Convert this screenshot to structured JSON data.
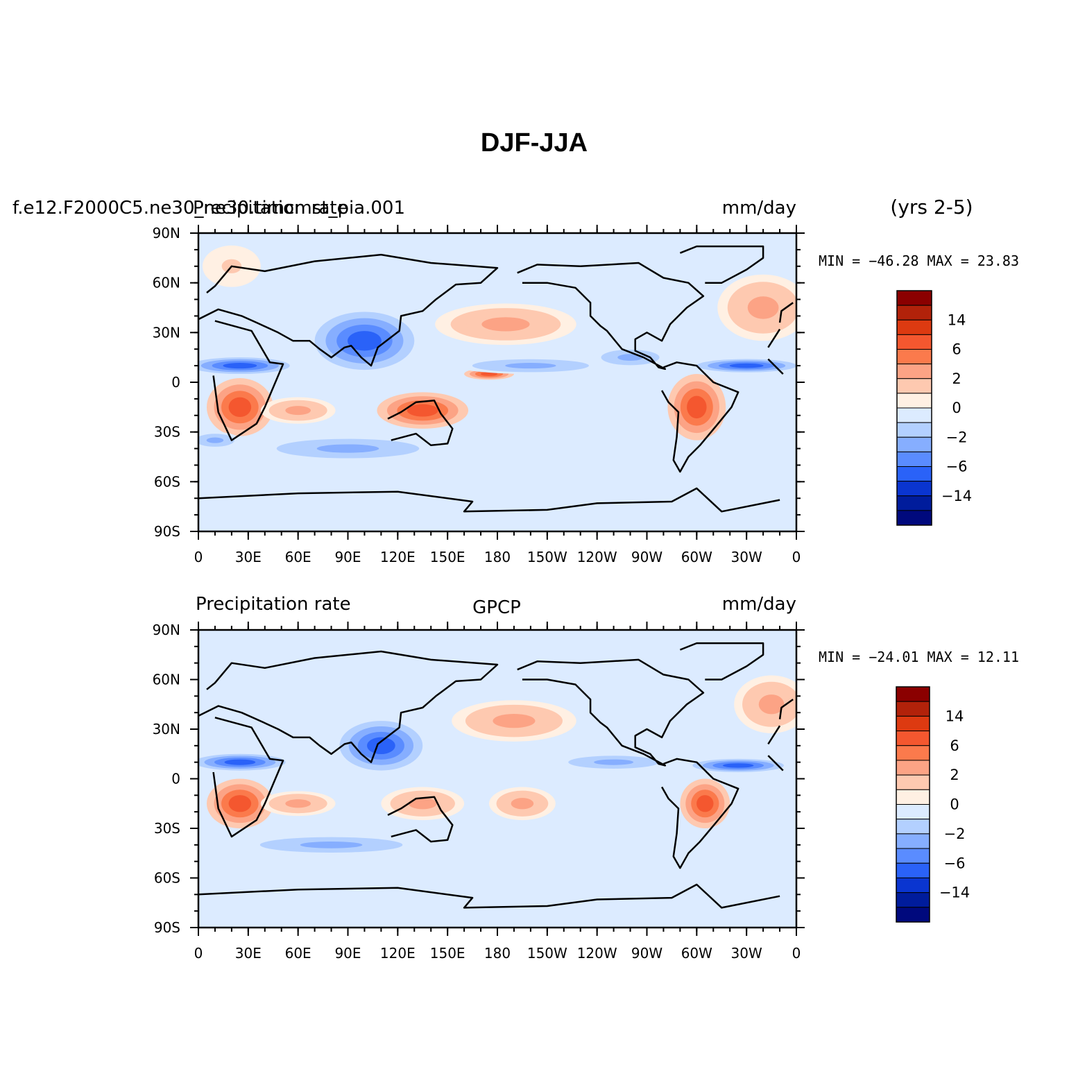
{
  "figure": {
    "title": "DJF-JJA"
  },
  "chart_data": [
    {
      "type": "contour-map",
      "case_label": "f.e12.F2000C5.ne30_ne30.timcmst_pia.001",
      "variable_label": "Precipitation rate",
      "units": "mm/day",
      "period": "(yrs 2-5)",
      "stats": {
        "label": "MIN = −46.28  MAX =   23.83",
        "min": -46.28,
        "max": 23.83
      },
      "xlim": [
        0,
        360
      ],
      "ylim": [
        -90,
        90
      ],
      "xticks": [
        "0",
        "30E",
        "60E",
        "90E",
        "120E",
        "150E",
        "180",
        "150W",
        "120W",
        "90W",
        "60W",
        "30W",
        "0"
      ],
      "yticks": [
        "90N",
        "60N",
        "30N",
        "0",
        "30S",
        "60S",
        "90S"
      ],
      "field": {
        "background": 0,
        "anomalies": [
          {
            "lon": 25,
            "lat": -15,
            "w": 40,
            "h": 35,
            "v": 6
          },
          {
            "lon": 60,
            "lat": -17,
            "w": 45,
            "h": 16,
            "v": 2
          },
          {
            "lon": 135,
            "lat": -17,
            "w": 55,
            "h": 22,
            "v": 6
          },
          {
            "lon": 300,
            "lat": -15,
            "w": 35,
            "h": 40,
            "v": 6
          },
          {
            "lon": 185,
            "lat": 35,
            "w": 85,
            "h": 25,
            "v": 2
          },
          {
            "lon": 340,
            "lat": 45,
            "w": 55,
            "h": 40,
            "v": 2
          },
          {
            "lon": 20,
            "lat": 70,
            "w": 35,
            "h": 25,
            "v": 1
          },
          {
            "lon": 175,
            "lat": 5,
            "w": 30,
            "h": 7,
            "v": 6
          },
          {
            "lon": 100,
            "lat": 25,
            "w": 60,
            "h": 35,
            "v": -6
          },
          {
            "lon": 25,
            "lat": 10,
            "w": 60,
            "h": 10,
            "v": -6
          },
          {
            "lon": 330,
            "lat": 10,
            "w": 60,
            "h": 8,
            "v": -6
          },
          {
            "lon": 260,
            "lat": 15,
            "w": 45,
            "h": 12,
            "v": -2
          },
          {
            "lon": 90,
            "lat": -40,
            "w": 110,
            "h": 15,
            "v": -2
          },
          {
            "lon": 200,
            "lat": 10,
            "w": 90,
            "h": 10,
            "v": -2
          },
          {
            "lon": 10,
            "lat": -35,
            "w": 30,
            "h": 10,
            "v": -2
          }
        ]
      },
      "colorbar": {
        "labels": [
          "14",
          "6",
          "2",
          "0",
          "−2",
          "−6",
          "−14"
        ],
        "colors": [
          "#8b0000",
          "#b2220a",
          "#dd3a11",
          "#f4572f",
          "#fb7a4c",
          "#fca385",
          "#fec9b0",
          "#fff0e3",
          "#dcebff",
          "#b3d0ff",
          "#86aeff",
          "#5a8cff",
          "#2a62f8",
          "#0a35d0",
          "#001c9c",
          "#00097d"
        ]
      }
    },
    {
      "type": "contour-map",
      "variable_label": "Precipitation rate",
      "dataset": "GPCP",
      "units": "mm/day",
      "stats": {
        "label": "MIN = −24.01  MAX =   12.11",
        "min": -24.01,
        "max": 12.11
      },
      "xlim": [
        0,
        360
      ],
      "ylim": [
        -90,
        90
      ],
      "xticks": [
        "0",
        "30E",
        "60E",
        "90E",
        "120E",
        "150E",
        "180",
        "150W",
        "120W",
        "90W",
        "60W",
        "30W",
        "0"
      ],
      "yticks": [
        "90N",
        "60N",
        "30N",
        "0",
        "30S",
        "60S",
        "90S"
      ],
      "field": {
        "background": 0,
        "anomalies": [
          {
            "lon": 25,
            "lat": -15,
            "w": 40,
            "h": 30,
            "v": 6
          },
          {
            "lon": 60,
            "lat": -15,
            "w": 45,
            "h": 15,
            "v": 2
          },
          {
            "lon": 135,
            "lat": -15,
            "w": 50,
            "h": 20,
            "v": 2
          },
          {
            "lon": 195,
            "lat": -15,
            "w": 40,
            "h": 20,
            "v": 2
          },
          {
            "lon": 305,
            "lat": -15,
            "w": 30,
            "h": 30,
            "v": 6
          },
          {
            "lon": 190,
            "lat": 35,
            "w": 75,
            "h": 25,
            "v": 2
          },
          {
            "lon": 345,
            "lat": 45,
            "w": 45,
            "h": 35,
            "v": 2
          },
          {
            "lon": 110,
            "lat": 20,
            "w": 50,
            "h": 30,
            "v": -6
          },
          {
            "lon": 25,
            "lat": 10,
            "w": 55,
            "h": 10,
            "v": -6
          },
          {
            "lon": 325,
            "lat": 8,
            "w": 55,
            "h": 8,
            "v": -6
          },
          {
            "lon": 250,
            "lat": 10,
            "w": 70,
            "h": 10,
            "v": -2
          },
          {
            "lon": 80,
            "lat": -40,
            "w": 110,
            "h": 12,
            "v": -2
          }
        ]
      },
      "colorbar": {
        "labels": [
          "14",
          "6",
          "2",
          "0",
          "−2",
          "−6",
          "−14"
        ],
        "colors": [
          "#8b0000",
          "#b2220a",
          "#dd3a11",
          "#f4572f",
          "#fb7a4c",
          "#fca385",
          "#fec9b0",
          "#fff0e3",
          "#dcebff",
          "#b3d0ff",
          "#86aeff",
          "#5a8cff",
          "#2a62f8",
          "#0a35d0",
          "#001c9c",
          "#00097d"
        ]
      }
    }
  ]
}
